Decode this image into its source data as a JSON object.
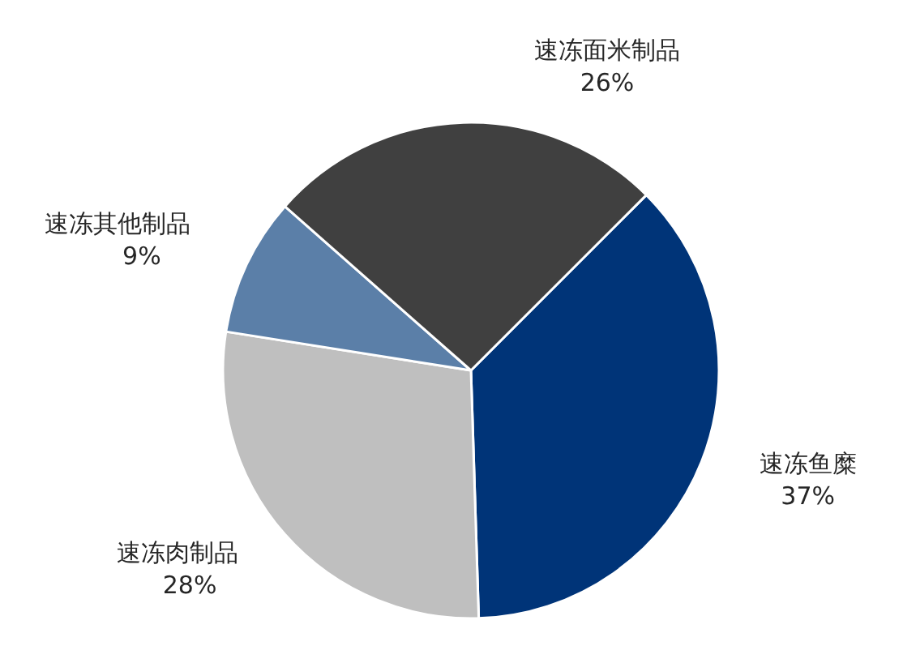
{
  "chart_data": {
    "type": "pie",
    "categories": [
      "速冻鱼糜",
      "速冻肉制品",
      "速冻其他制品",
      "速冻面米制品"
    ],
    "values": [
      37,
      28,
      9,
      26
    ],
    "value_labels": [
      "37%",
      "28%",
      "9%",
      "26%"
    ],
    "colors": [
      "#003478",
      "#bfbfbf",
      "#5b7fa8",
      "#404040"
    ]
  }
}
